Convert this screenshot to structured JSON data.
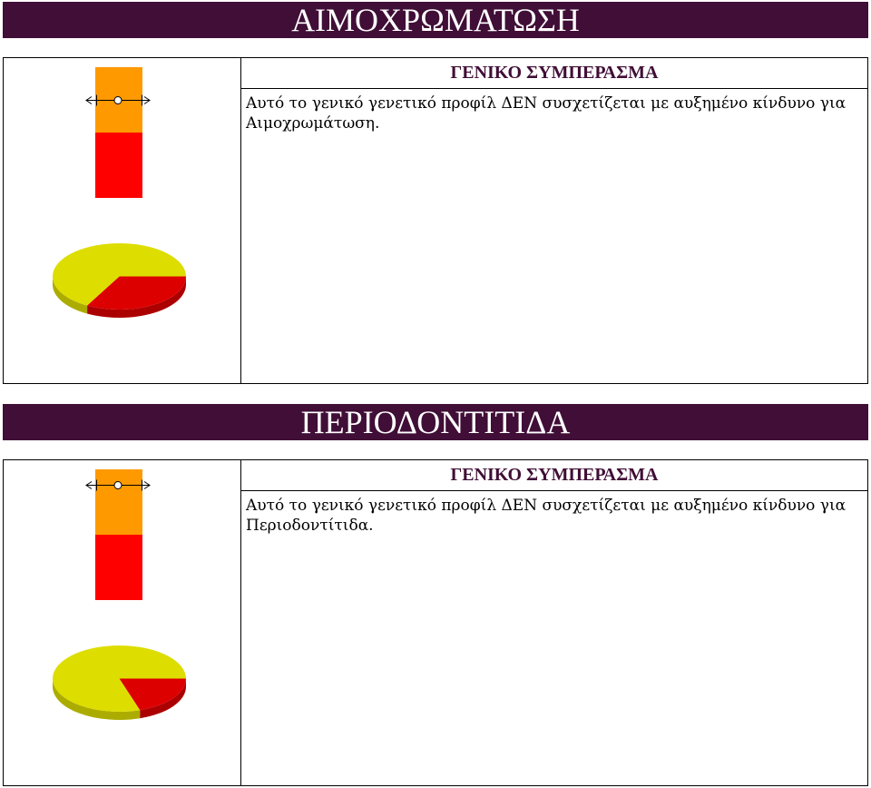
{
  "theme": {
    "header_bg": "#400e36",
    "header_text": "#ffffff",
    "heading_text": "#400e36",
    "border": "#000000"
  },
  "sections": [
    {
      "title": "ΑΙΜΟΧΡΩΜΑΤΩΣΗ",
      "conclusion_heading": "ΓΕΝΙΚΟ ΣΥΜΠΕΡΑΣΜΑ",
      "conclusion_text": "Αυτό το γενικό γενετικό προφίλ ΔΕΝ συσχετίζεται με αυξημένο κίνδυνο για Αιμοχρωμάτωση.",
      "gauge": {
        "zones": [
          {
            "color": "#ff9900",
            "fraction": 0.5
          },
          {
            "color": "#ff0000",
            "fraction": 0.5
          }
        ],
        "marker_fraction_from_top": 0.25
      }
    },
    {
      "title": "ΠΕΡΙΟΔΟΝΤΙΤΙΔΑ",
      "conclusion_heading": "ΓΕΝΙΚΟ ΣΥΜΠΕΡΑΣΜΑ",
      "conclusion_text": "Αυτό το γενικό γενετικό προφίλ ΔΕΝ συσχετίζεται με αυξημένο κίνδυνο για Περιοδοντίτιδα.",
      "gauge": {
        "zones": [
          {
            "color": "#ff9900",
            "fraction": 0.5
          },
          {
            "color": "#ff0000",
            "fraction": 0.5
          }
        ],
        "marker_fraction_from_top": 0.12
      }
    }
  ],
  "chart_data": [
    {
      "type": "pie",
      "three_d": true,
      "values": [
        0.33,
        0.67
      ],
      "colors": [
        "#dd0000",
        "#dddd00"
      ]
    },
    {
      "type": "pie",
      "three_d": true,
      "values": [
        0.2,
        0.8
      ],
      "colors": [
        "#dd0000",
        "#dddd00"
      ]
    }
  ]
}
